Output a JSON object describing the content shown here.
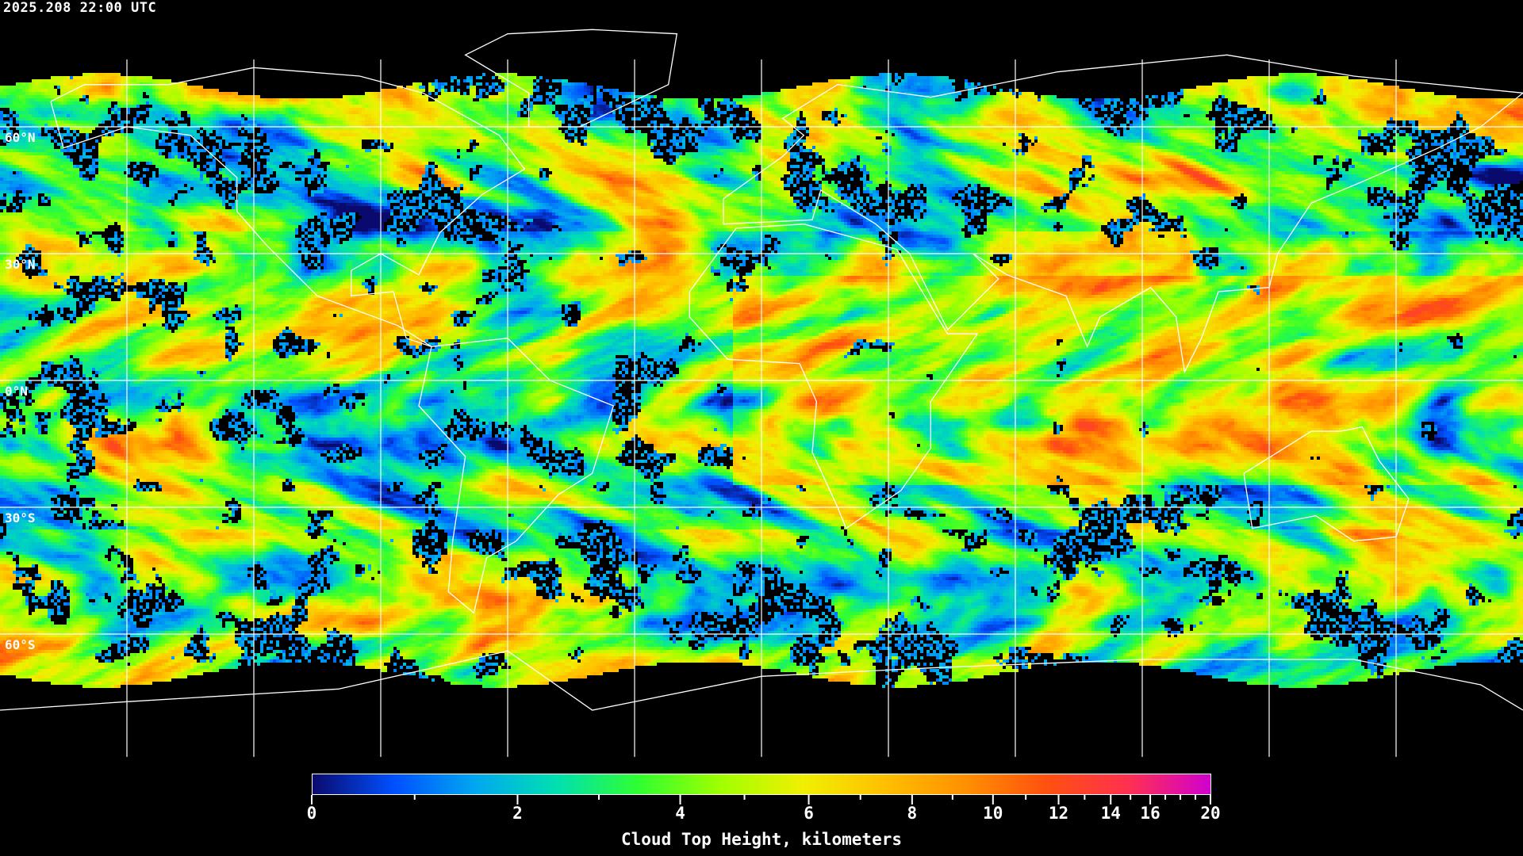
{
  "timestamp": "2025.208 22:00 UTC",
  "map": {
    "projection": "equirectangular",
    "graticule_spacing_deg": 30,
    "lat_labels": [
      "60°N",
      "30°N",
      "0°N",
      "30°S",
      "60°S"
    ],
    "coastline_color": "#ffffff",
    "gridline_color": "#ffffff",
    "no_data_color": "#000000"
  },
  "colorbar": {
    "title": "Cloud Top Height, kilometers",
    "min": 0,
    "max": 20,
    "major_ticks": [
      "0",
      "2",
      "4",
      "6",
      "8",
      "10",
      "12",
      "14",
      "16",
      "20"
    ],
    "minor_ticks": [
      1,
      3,
      5,
      7,
      9,
      11,
      13,
      15,
      17,
      18,
      19
    ],
    "colors": [
      "#0a0a6e",
      "#0050ff",
      "#00a8f0",
      "#00e0b0",
      "#30ff30",
      "#a0ff00",
      "#f0f000",
      "#ffc000",
      "#ff9000",
      "#ff5010",
      "#ff3050",
      "#d000d0"
    ]
  }
}
